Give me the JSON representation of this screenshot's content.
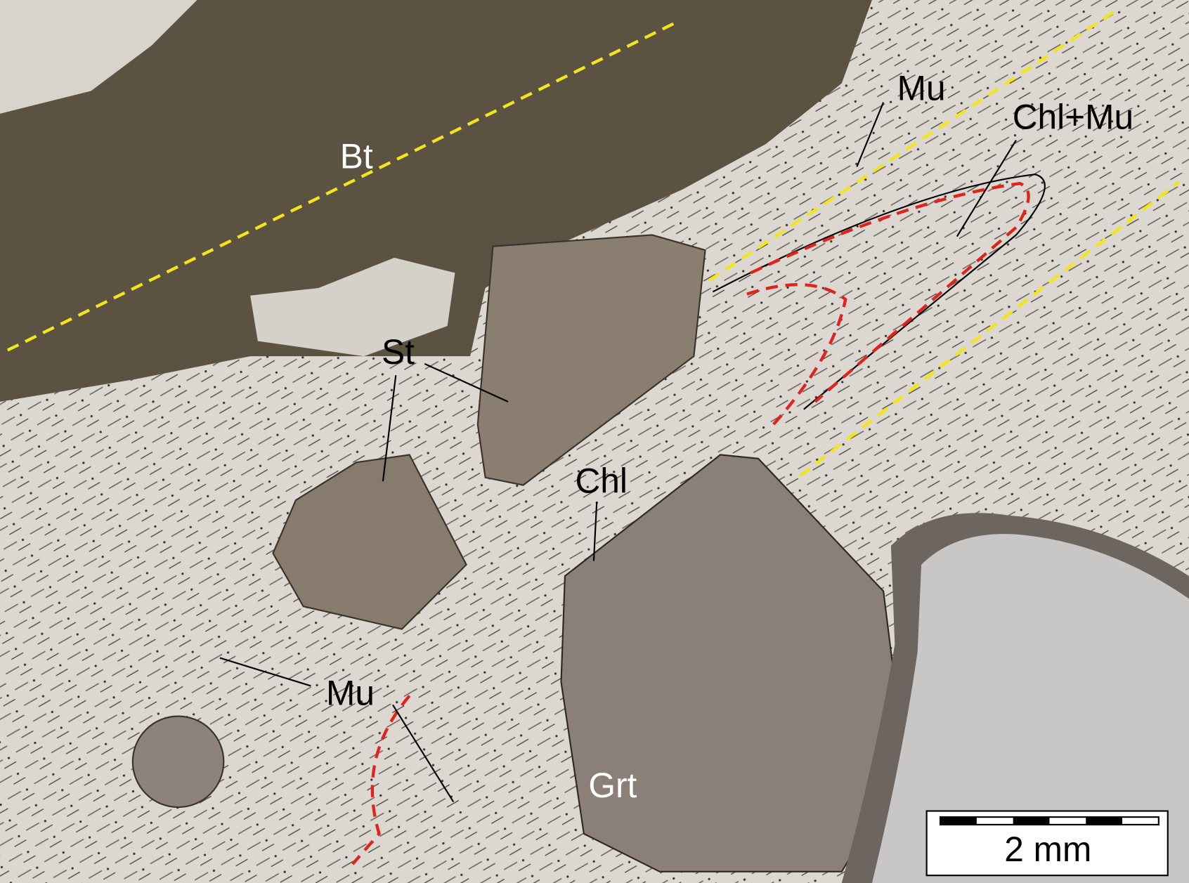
{
  "labels": [
    "Bt",
    "Mu",
    "Chl+Mu",
    "St",
    "Chl",
    "Mu",
    "Grt"
  ],
  "scale_bar": "2 mm"
}
